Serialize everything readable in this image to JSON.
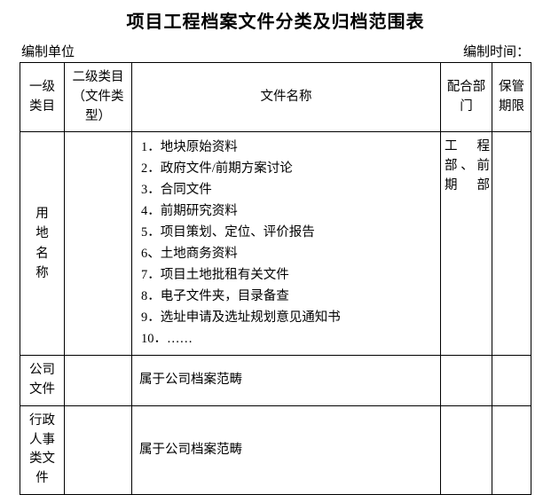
{
  "title": "项目工程档案文件分类及归档范围表",
  "meta": {
    "unit_label": "编制单位",
    "time_label": "编制时间："
  },
  "headers": {
    "col1": "一级类目",
    "col2": "二级类目（文件类型）",
    "col3": "文件名称",
    "col4": "配合部门",
    "col5": "保管期限"
  },
  "rows": [
    {
      "cat1": "用地名称",
      "files": [
        "1．地块原始资料",
        "2．政府文件/前期方案讨论",
        "3．合同文件",
        "4．前期研究资料",
        "5．项目策划、定位、评价报告",
        "6、土地商务资料",
        "7．项目土地批租有关文件",
        "8．电子文件夹，目录备查",
        "9．选址申请及选址规划意见通知书",
        "10．……"
      ],
      "dept": "工　程部、前期部"
    },
    {
      "cat1": "公司文件",
      "desc": "属于公司档案范畴"
    },
    {
      "cat1": "行政人事类文件",
      "desc": "属于公司档案范畴"
    }
  ],
  "style": {
    "background_color": "#ffffff",
    "text_color": "#000000",
    "border_color": "#000000",
    "title_fontsize": 20,
    "body_fontsize": 14.5,
    "font_family": "SimSun"
  }
}
